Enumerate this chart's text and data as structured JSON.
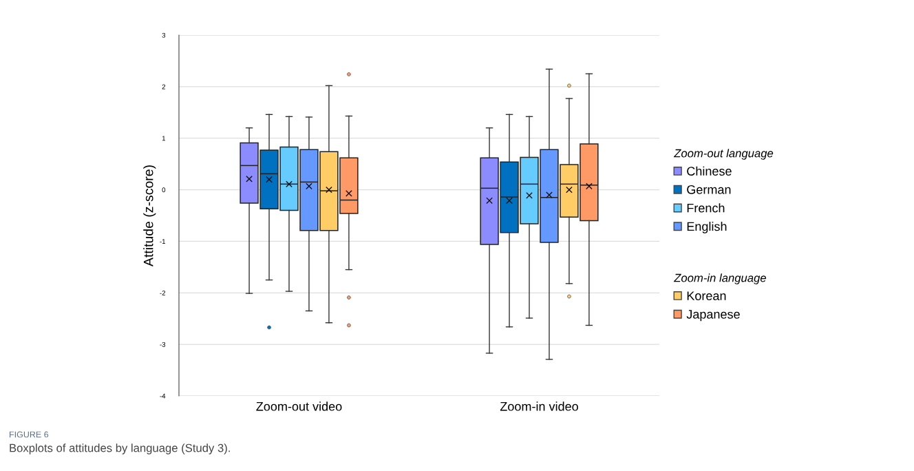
{
  "chart_data": {
    "type": "box",
    "ylabel": "Attitude (z-score)",
    "legend_title": "Zoom-out language",
    "annotations": [
      "Zoom-in language",
      "FIGURE 6",
      "Boxplots of attitudes by language (Study 3)."
    ],
    "categories": [
      "Zoom-out video",
      "Zoom-in video"
    ],
    "ylim": [
      -4,
      3
    ],
    "yticks": [
      -4,
      -3,
      -2,
      -1,
      0,
      1,
      2,
      3
    ],
    "grid": "y",
    "legend": "right",
    "series": [
      {
        "name": "Chinese",
        "color": "#8c8cff",
        "boxes": [
          {
            "low": -2.01,
            "q1": -0.26,
            "median": 0.47,
            "q3": 0.91,
            "high": 1.2,
            "mean": 0.21
          },
          {
            "low": -3.17,
            "q1": -1.06,
            "median": 0.03,
            "q3": 0.62,
            "high": 1.2,
            "mean": -0.21
          }
        ]
      },
      {
        "name": "German",
        "color": "#0070c0",
        "boxes": [
          {
            "low": -1.75,
            "q1": -0.37,
            "median": 0.31,
            "q3": 0.77,
            "high": 1.46,
            "mean": 0.2,
            "outliers": [
              -2.67
            ]
          },
          {
            "low": -2.66,
            "q1": -0.83,
            "median": -0.14,
            "q3": 0.54,
            "high": 1.46,
            "mean": -0.21
          }
        ]
      },
      {
        "name": "French",
        "color": "#66ccff",
        "boxes": [
          {
            "low": -1.97,
            "q1": -0.4,
            "median": 0.11,
            "q3": 0.83,
            "high": 1.42,
            "mean": 0.11
          },
          {
            "low": -2.49,
            "q1": -0.66,
            "median": 0.11,
            "q3": 0.63,
            "high": 1.42,
            "mean": -0.11
          }
        ]
      },
      {
        "name": "English",
        "color": "#6699ff",
        "boxes": [
          {
            "low": -2.35,
            "q1": -0.79,
            "median": 0.15,
            "q3": 0.78,
            "high": 1.41,
            "mean": 0.07
          },
          {
            "low": -3.29,
            "q1": -1.02,
            "median": -0.15,
            "q3": 0.78,
            "high": 2.34,
            "mean": -0.1
          }
        ]
      },
      {
        "name": "Korean",
        "color": "#ffcc66",
        "boxes": [
          {
            "low": -2.58,
            "q1": -0.79,
            "median": -0.02,
            "q3": 0.74,
            "high": 2.02,
            "mean": 0.0
          },
          {
            "low": -1.82,
            "q1": -0.53,
            "median": 0.11,
            "q3": 0.49,
            "high": 1.77,
            "mean": 0.0,
            "outliers": [
              2.02,
              -2.07
            ]
          }
        ]
      },
      {
        "name": "Japanese",
        "color": "#ff9966",
        "boxes": [
          {
            "low": -1.55,
            "q1": -0.46,
            "median": -0.2,
            "q3": 0.62,
            "high": 1.43,
            "mean": -0.07,
            "outliers": [
              2.24,
              -2.09,
              -2.63
            ]
          },
          {
            "low": -2.63,
            "q1": -0.6,
            "median": 0.09,
            "q3": 0.89,
            "high": 2.25,
            "mean": 0.07
          }
        ]
      }
    ]
  }
}
